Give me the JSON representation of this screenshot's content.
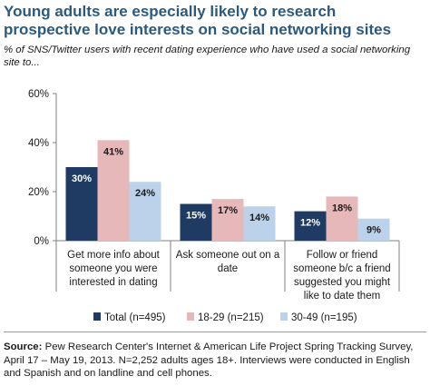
{
  "header": {
    "title": "Young adults are especially likely to research prospective love interests on social networking sites",
    "subtitle": "% of SNS/Twitter users with recent dating experience who have used a social networking site to..."
  },
  "footer": {
    "source_label": "Source:",
    "source_text": "Pew Research Center's Internet & American Life Project Spring Tracking Survey, April 17 – May 19, 2013. N=2,252 adults ages 18+. Interviews were conducted in English and Spanish and on landline and cell phones."
  },
  "colors": {
    "title": "#2b5a7e",
    "total": "#1f3b63",
    "age_18_29": "#e7b8ba",
    "age_30_49": "#bcd2ea"
  },
  "chart_data": {
    "type": "bar",
    "title": "",
    "xlabel": "",
    "ylabel": "",
    "ylim": [
      0,
      60
    ],
    "yticks": [
      0,
      20,
      40,
      60
    ],
    "ytick_labels": [
      "0%",
      "20%",
      "40%",
      "60%"
    ],
    "grid": false,
    "legend_position": "bottom",
    "categories": [
      [
        "Get more info about",
        "someone you were",
        "interested in dating"
      ],
      [
        "Ask someone out on a",
        "date"
      ],
      [
        "Follow or friend",
        "someone b/c a friend",
        "suggested you might",
        "like to date them"
      ]
    ],
    "series": [
      {
        "name": "Total (n=495)",
        "values": [
          30,
          15,
          12
        ],
        "labels": [
          "30%",
          "15%",
          "12%"
        ],
        "color": "#1f3b63",
        "label_color": "#ffffff"
      },
      {
        "name": "18-29 (n=215)",
        "values": [
          41,
          17,
          18
        ],
        "labels": [
          "41%",
          "17%",
          "18%"
        ],
        "color": "#e7b8ba",
        "label_color": "#1a1a1a"
      },
      {
        "name": "30-49 (n=195)",
        "values": [
          24,
          14,
          9
        ],
        "labels": [
          "24%",
          "14%",
          "9%"
        ],
        "color": "#bcd2ea",
        "label_color": "#1a1a1a"
      }
    ]
  }
}
